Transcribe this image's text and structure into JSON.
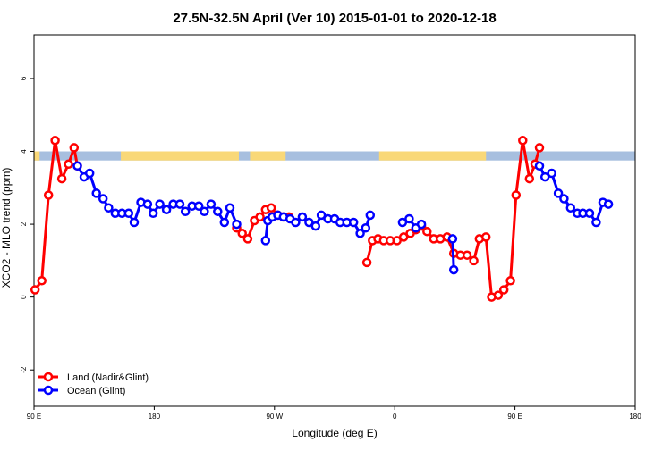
{
  "chart_data": {
    "type": "line",
    "title": "27.5N-32.5N April (Ver 10)   2015-01-01 to 2020-12-18",
    "xlabel": "Longitude (deg E)",
    "ylabel": "XCO2 - MLO trend (ppm)",
    "xlim": [
      -90,
      180
    ],
    "ylim": [
      -3,
      7.2
    ],
    "x_ticks": [
      {
        "value": -90,
        "label": "90 E"
      },
      {
        "value": -36,
        "label": "180"
      },
      {
        "value": 18,
        "label": "90 W"
      },
      {
        "value": 72,
        "label": "0"
      },
      {
        "value": 126,
        "label": "90 E"
      },
      {
        "value": 180,
        "label": "180"
      }
    ],
    "y_ticks": [
      {
        "value": -2,
        "label": "-2"
      },
      {
        "value": 0,
        "label": "0"
      },
      {
        "value": 2,
        "label": "2"
      },
      {
        "value": 4,
        "label": "4"
      },
      {
        "value": 6,
        "label": "6"
      }
    ],
    "grid": false,
    "legend_position": "bottom-left",
    "land_ocean_band": {
      "y_range": [
        3.75,
        4.0
      ],
      "ocean_color": "#a7bfdf",
      "land_color": "#f9d878",
      "land_x_ranges": [
        [
          -90,
          -87.5
        ],
        [
          -51,
          2
        ],
        [
          7,
          23
        ],
        [
          65,
          113
        ]
      ]
    },
    "series": [
      {
        "name": "Land (Nadir&Glint)",
        "color": "#ff0000",
        "segments": [
          [
            [
              -89.5,
              0.2
            ],
            [
              -86.5,
              0.45
            ],
            [
              -83.5,
              2.8
            ],
            [
              -80.5,
              4.3
            ],
            [
              -77.5,
              3.25
            ],
            [
              -74.5,
              3.65
            ],
            [
              -72,
              4.1
            ],
            [
              -70.5,
              3.6
            ]
          ],
          [
            [
              1,
              1.9
            ],
            [
              3.5,
              1.75
            ],
            [
              6,
              1.6
            ],
            [
              9,
              2.1
            ],
            [
              11.5,
              2.2
            ],
            [
              14,
              2.4
            ],
            [
              16.5,
              2.45
            ],
            [
              19.5,
              2.25
            ],
            [
              22,
              2.2
            ],
            [
              24.5,
              2.2
            ]
          ],
          [
            [
              59.5,
              0.95
            ],
            [
              62,
              1.55
            ],
            [
              64.5,
              1.6
            ],
            [
              67,
              1.55
            ],
            [
              70,
              1.55
            ],
            [
              73,
              1.55
            ],
            [
              76,
              1.65
            ],
            [
              79,
              1.75
            ],
            [
              81.5,
              1.85
            ],
            [
              84,
              1.95
            ],
            [
              86.5,
              1.8
            ],
            [
              89.5,
              1.6
            ],
            [
              92.5,
              1.6
            ],
            [
              95.5,
              1.65
            ],
            [
              98.5,
              1.2
            ],
            [
              101.5,
              1.15
            ],
            [
              104.5,
              1.15
            ],
            [
              107.5,
              1.0
            ],
            [
              110,
              1.6
            ],
            [
              113,
              1.65
            ],
            [
              115.5,
              0.0
            ],
            [
              118.5,
              0.05
            ],
            [
              121,
              0.2
            ],
            [
              124,
              0.45
            ],
            [
              126.5,
              2.8
            ],
            [
              129.5,
              4.3
            ],
            [
              132.5,
              3.25
            ],
            [
              135,
              3.65
            ],
            [
              137,
              4.1
            ]
          ]
        ]
      },
      {
        "name": "Ocean (Glint)",
        "color": "#0000ff",
        "segments": [
          [
            [
              -70.5,
              3.6
            ],
            [
              -67.5,
              3.3
            ],
            [
              -65,
              3.4
            ],
            [
              -62,
              2.85
            ],
            [
              -59,
              2.7
            ],
            [
              -56.5,
              2.45
            ],
            [
              -53.5,
              2.3
            ],
            [
              -50.5,
              2.3
            ],
            [
              -47.5,
              2.3
            ],
            [
              -45,
              2.05
            ],
            [
              -42,
              2.6
            ],
            [
              -39,
              2.55
            ],
            [
              -36.5,
              2.3
            ],
            [
              -33.5,
              2.55
            ],
            [
              -30.5,
              2.4
            ],
            [
              -27.5,
              2.55
            ],
            [
              -24.5,
              2.55
            ],
            [
              -22,
              2.35
            ],
            [
              -19,
              2.5
            ],
            [
              -16,
              2.5
            ],
            [
              -13.5,
              2.35
            ],
            [
              -10.5,
              2.55
            ],
            [
              -7.5,
              2.35
            ],
            [
              -4.5,
              2.05
            ],
            [
              -2,
              2.45
            ],
            [
              1,
              2.0
            ]
          ],
          [
            [
              14,
              1.55
            ],
            [
              15,
              2.1
            ],
            [
              17,
              2.2
            ],
            [
              19.5,
              2.25
            ],
            [
              22,
              2.2
            ],
            [
              25,
              2.15
            ],
            [
              27.5,
              2.05
            ],
            [
              30.5,
              2.2
            ],
            [
              33.5,
              2.05
            ],
            [
              36.5,
              1.95
            ],
            [
              39,
              2.25
            ],
            [
              42,
              2.15
            ],
            [
              45,
              2.15
            ],
            [
              47.5,
              2.05
            ],
            [
              50.5,
              2.05
            ],
            [
              53.5,
              2.05
            ],
            [
              56.5,
              1.75
            ],
            [
              59,
              1.9
            ],
            [
              61,
              2.25
            ]
          ],
          [
            [
              75.5,
              2.05
            ],
            [
              78.5,
              2.15
            ],
            [
              81.5,
              1.9
            ],
            [
              84,
              2.0
            ]
          ],
          [
            [
              98,
              1.6
            ],
            [
              98.5,
              0.75
            ]
          ],
          [
            [
              137,
              3.6
            ],
            [
              139.5,
              3.3
            ],
            [
              142.5,
              3.4
            ],
            [
              145.5,
              2.85
            ],
            [
              148,
              2.7
            ],
            [
              151,
              2.45
            ],
            [
              154,
              2.3
            ],
            [
              156.5,
              2.3
            ],
            [
              159.5,
              2.3
            ],
            [
              162.5,
              2.05
            ],
            [
              165.5,
              2.6
            ],
            [
              168,
              2.55
            ]
          ]
        ]
      }
    ]
  }
}
